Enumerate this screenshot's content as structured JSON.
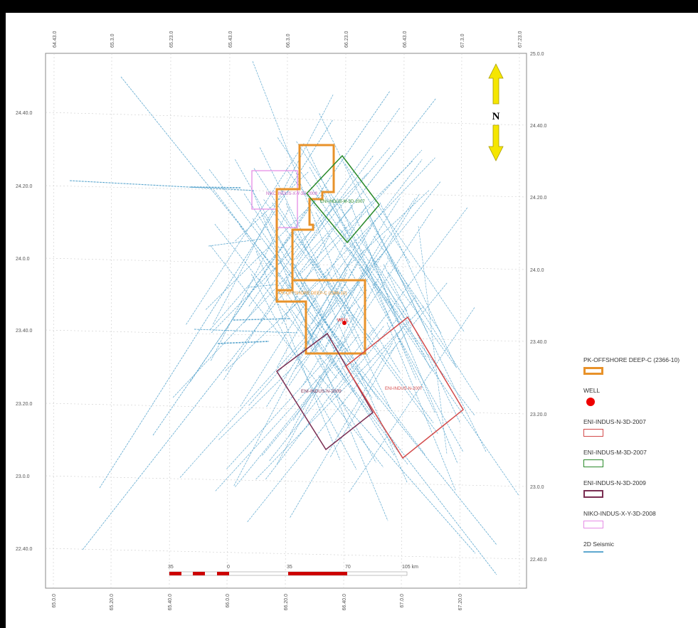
{
  "map": {
    "top_ticks": [
      "64.43.0",
      "65.3.0",
      "65.23.0",
      "65.43.0",
      "66.3.0",
      "66.23.0",
      "66.43.0",
      "67.3.0",
      "67.23.0"
    ],
    "bottom_ticks": [
      "65.0.0",
      "65.20.0",
      "65.40.0",
      "66.0.0",
      "66.20.0",
      "66.40.0",
      "67.0.0",
      "67.20.0"
    ],
    "left_ticks": [
      "24.40.0",
      "24.20.0",
      "24.0.0",
      "23.40.0",
      "23.20.0",
      "23.0.0",
      "22.40.0"
    ],
    "right_ticks": [
      "25.0.0",
      "24.40.0",
      "24.20.0",
      "24.0.0",
      "23.40.0",
      "23.20.0",
      "23.0.0",
      "22.40.0"
    ],
    "north_label": "N",
    "scale": {
      "labels": [
        "35",
        "0",
        "35",
        "70",
        "105 km"
      ]
    },
    "area_labels": {
      "niko": "NIKO-INDUS-X-Y-3D-2008",
      "eni_m": "ENI-INDUS-M-3D-2007",
      "pk": "PK-OFFSHORE DEEP-C (2366-10)",
      "well": "WELL",
      "eni_n_2009": "ENI-INDUS-N-2009",
      "eni_n_2007": "ENI-INDUS-N-2007"
    },
    "colors": {
      "pk": "#e8922a",
      "well": "#e00000",
      "eni_n_2007": "#d34b4b",
      "eni_m": "#2a8a2a",
      "eni_n_2009": "#7a2e52",
      "niko": "#e58ce5",
      "seismic": "#5ea8cf"
    }
  },
  "legend": [
    {
      "key": "pk",
      "label": "PK-OFFSHORE DEEP-C (2366-10)",
      "icon": "thick-orange-rect"
    },
    {
      "key": "well",
      "label": "WELL",
      "icon": "red-dot"
    },
    {
      "key": "eni_n_2007",
      "label": "ENI-INDUS-N-3D-2007",
      "icon": "red-rect"
    },
    {
      "key": "eni_m",
      "label": "ENI-INDUS-M-3D-2007",
      "icon": "green-rect"
    },
    {
      "key": "eni_n_2009",
      "label": "ENI-INDUS-N-3D-2009",
      "icon": "purple-rect"
    },
    {
      "key": "niko",
      "label": "NIKO-INDUS-X-Y-3D-2008",
      "icon": "pink-rect"
    },
    {
      "key": "seismic",
      "label": "2D Seismic",
      "icon": "blue-line"
    }
  ]
}
